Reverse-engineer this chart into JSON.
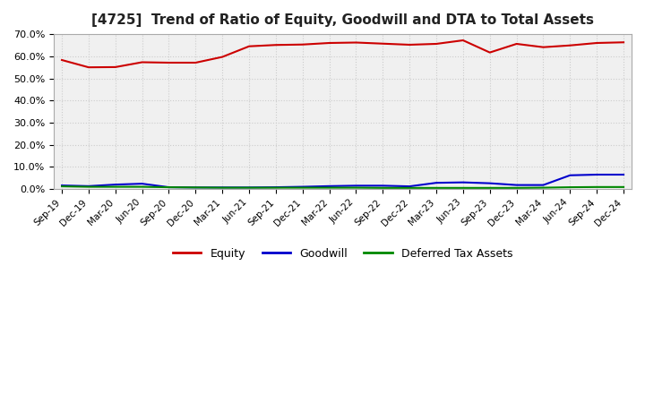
{
  "title": "[4725]  Trend of Ratio of Equity, Goodwill and DTA to Total Assets",
  "x_labels": [
    "Sep-19",
    "Dec-19",
    "Mar-20",
    "Jun-20",
    "Sep-20",
    "Dec-20",
    "Mar-21",
    "Jun-21",
    "Sep-21",
    "Dec-21",
    "Mar-22",
    "Jun-22",
    "Sep-22",
    "Dec-22",
    "Mar-23",
    "Jun-23",
    "Sep-23",
    "Dec-23",
    "Mar-24",
    "Jun-24",
    "Sep-24",
    "Dec-24"
  ],
  "equity": [
    0.583,
    0.55,
    0.551,
    0.573,
    0.571,
    0.571,
    0.597,
    0.645,
    0.651,
    0.653,
    0.66,
    0.662,
    0.657,
    0.652,
    0.656,
    0.672,
    0.617,
    0.656,
    0.641,
    0.649,
    0.66,
    0.663
  ],
  "goodwill": [
    0.016,
    0.013,
    0.02,
    0.024,
    0.008,
    0.007,
    0.007,
    0.007,
    0.008,
    0.01,
    0.013,
    0.015,
    0.015,
    0.012,
    0.028,
    0.03,
    0.026,
    0.018,
    0.018,
    0.062,
    0.065,
    0.065
  ],
  "dta": [
    0.012,
    0.01,
    0.01,
    0.01,
    0.008,
    0.007,
    0.006,
    0.006,
    0.006,
    0.006,
    0.006,
    0.006,
    0.005,
    0.005,
    0.005,
    0.005,
    0.005,
    0.005,
    0.006,
    0.008,
    0.009,
    0.009
  ],
  "equity_color": "#cc0000",
  "goodwill_color": "#0000cc",
  "dta_color": "#008800",
  "bg_color": "#ffffff",
  "plot_bg_color": "#f0f0f0",
  "grid_color": "#cccccc",
  "ylim": [
    0.0,
    0.7
  ],
  "yticks": [
    0.0,
    0.1,
    0.2,
    0.3,
    0.4,
    0.5,
    0.6,
    0.7
  ],
  "legend_labels": [
    "Equity",
    "Goodwill",
    "Deferred Tax Assets"
  ]
}
